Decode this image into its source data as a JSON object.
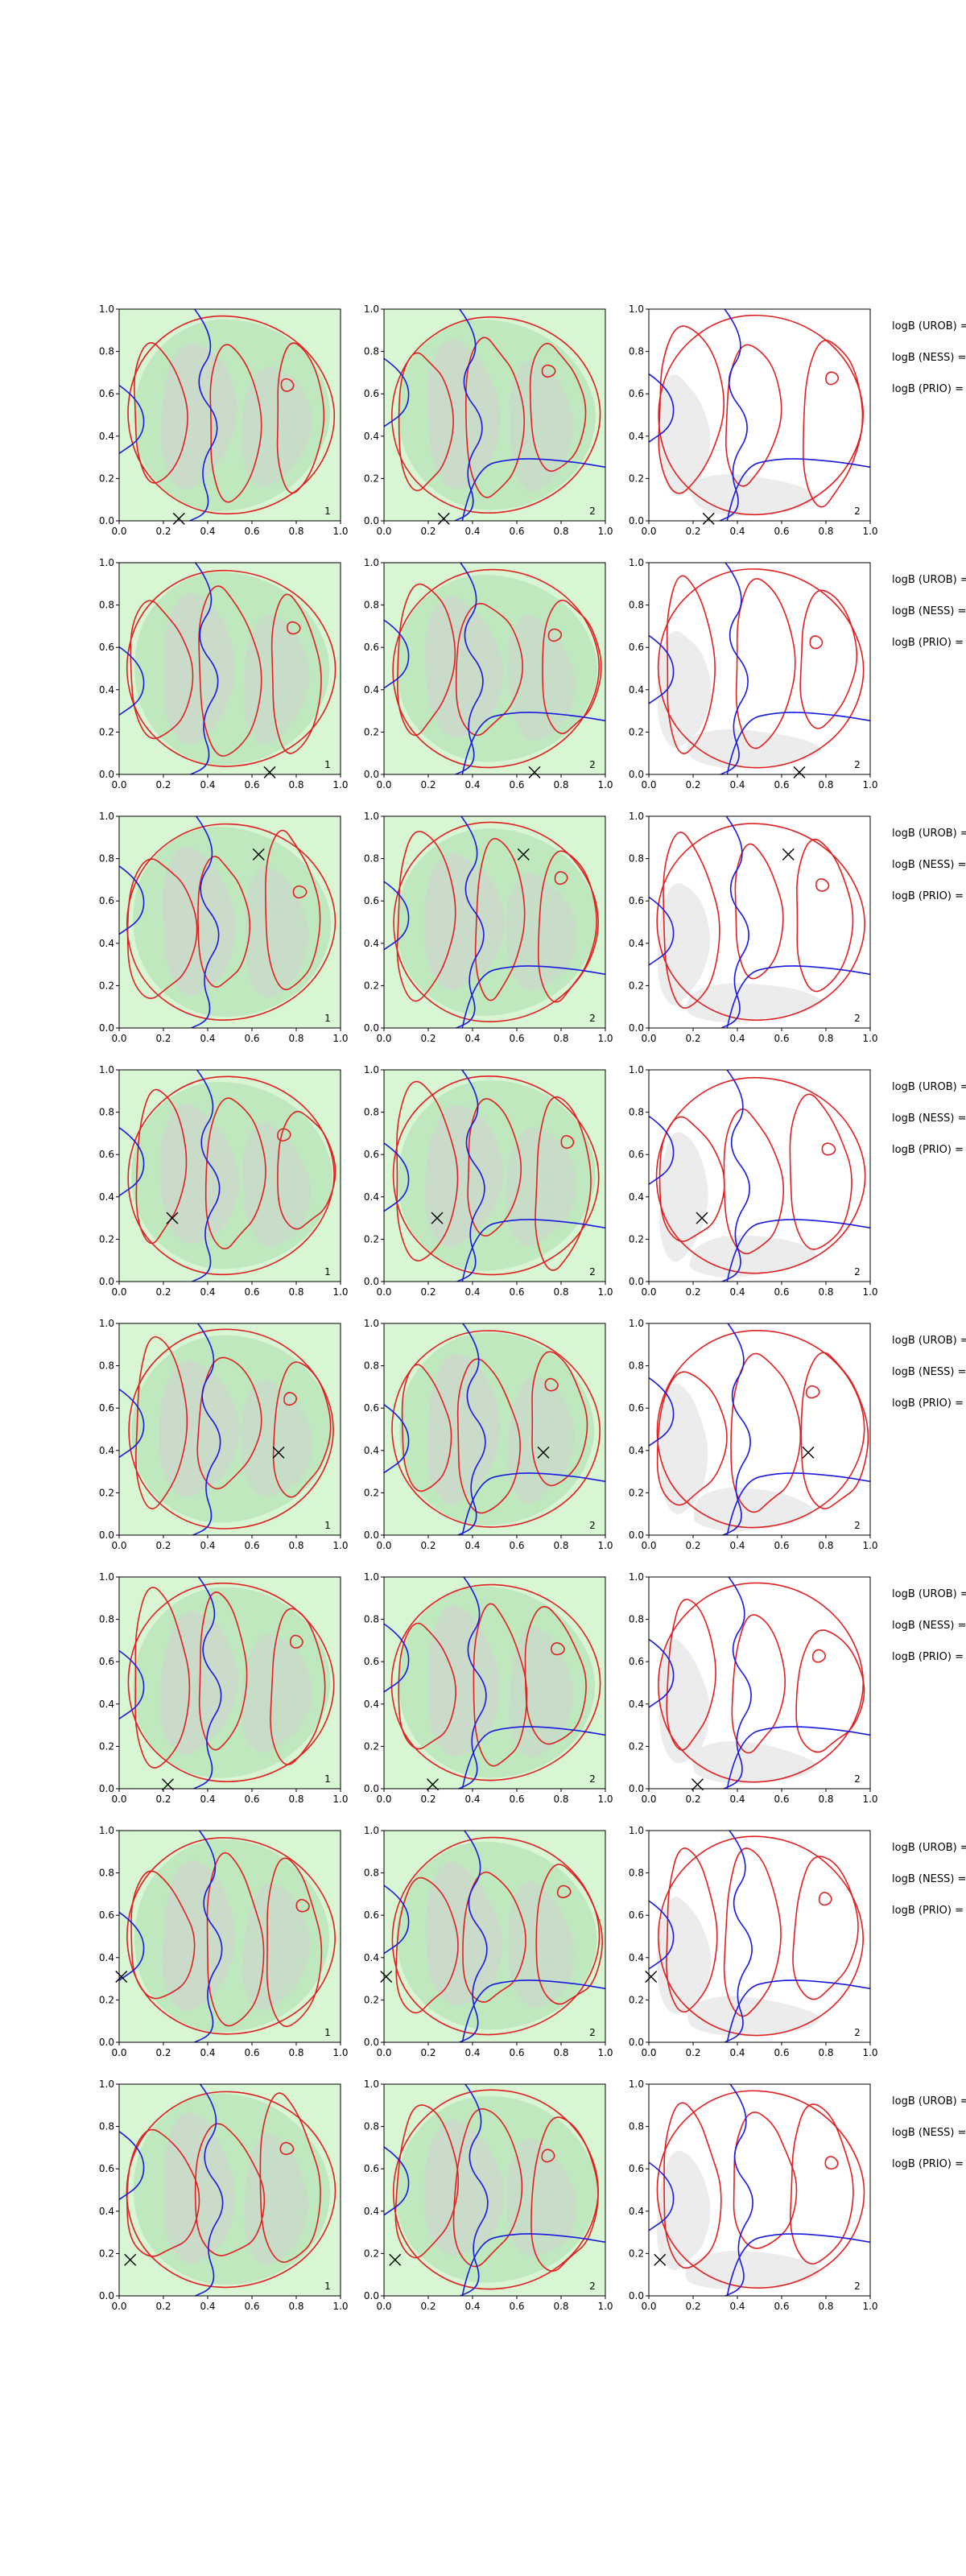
{
  "figure": {
    "background": "#ffffff",
    "colors": {
      "fill_light": "#d8f5d4",
      "fill_mid": "#bfe8bf",
      "fill_grey": "#cfd6cf",
      "fill_grey_only": "#ececec",
      "red": "#e02020",
      "blue": "#1a1ae0",
      "axis": "#000000"
    }
  },
  "chart_data": {
    "type": "contour",
    "layout": "8 rows x 3 columns of contour panels",
    "xlim": [
      0,
      1
    ],
    "ylim": [
      0,
      1
    ],
    "ticks": [
      "0.0",
      "0.2",
      "0.4",
      "0.6",
      "0.8",
      "1.0"
    ],
    "column_panel_labels": [
      "1",
      "2",
      "2"
    ],
    "side_labels": [
      "logB (UROB) =",
      "logB (NESS) =",
      "logB (PRIO) ="
    ],
    "rows": [
      {
        "marker": [
          0.27,
          0.01
        ]
      },
      {
        "marker": [
          0.68,
          0.01
        ]
      },
      {
        "marker": [
          0.63,
          0.82
        ]
      },
      {
        "marker": [
          0.24,
          0.3
        ]
      },
      {
        "marker": [
          0.72,
          0.39
        ]
      },
      {
        "marker": [
          0.22,
          0.02
        ]
      },
      {
        "marker": [
          0.01,
          0.31
        ]
      },
      {
        "marker": [
          0.05,
          0.17
        ]
      }
    ]
  }
}
